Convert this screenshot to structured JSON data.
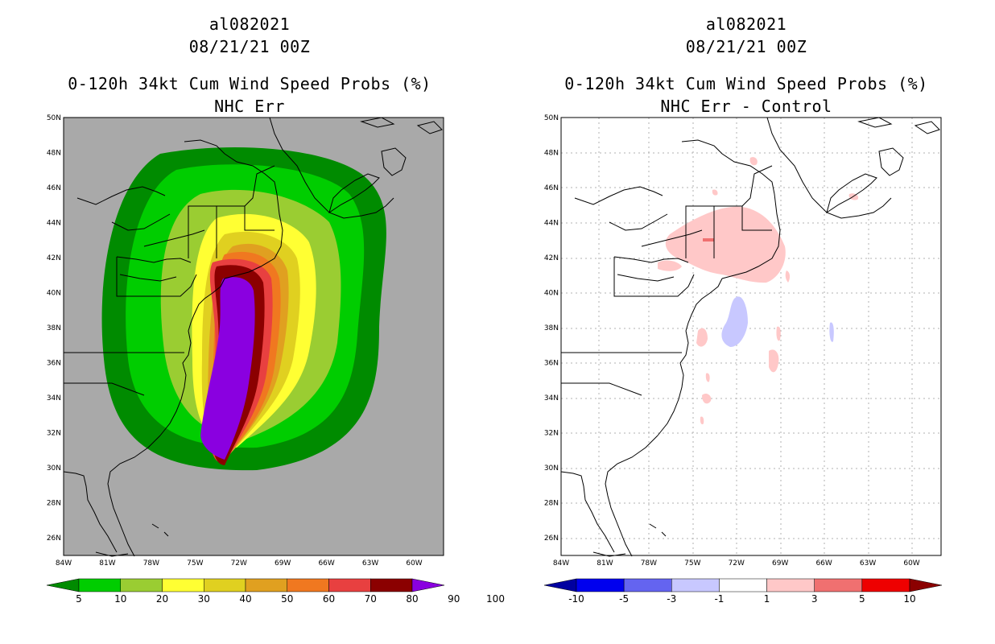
{
  "left_panel": {
    "storm_id": "al082021",
    "datetime": "08/21/21 00Z",
    "product": "0-120h 34kt Cum Wind Speed Probs (%)",
    "subtitle": "NHC Err",
    "background_color": "#a9a9a9",
    "colorbar": {
      "colors": [
        "#008b00",
        "#00cd00",
        "#9acd32",
        "#ffff33",
        "#e0d020",
        "#e0a020",
        "#f07820",
        "#e84040",
        "#8b0000",
        "#8a00e0"
      ],
      "labels": [
        "5",
        "10",
        "20",
        "30",
        "40",
        "50",
        "60",
        "70",
        "80",
        "90",
        "100"
      ]
    }
  },
  "right_panel": {
    "storm_id": "al082021",
    "datetime": "08/21/21 00Z",
    "product": "0-120h 34kt Cum Wind Speed Probs (%)",
    "subtitle": "NHC Err - Control",
    "background_color": "#ffffff",
    "colorbar": {
      "colors": [
        "#0000a0",
        "#0000ee",
        "#6464f0",
        "#c8c8ff",
        "#ffffff",
        "#ffc8c8",
        "#f07070",
        "#ee0000",
        "#8b0000"
      ],
      "labels": [
        "-10",
        "-5",
        "-3",
        "-1",
        "1",
        "3",
        "5",
        "10"
      ]
    }
  },
  "axes": {
    "lat_labels": [
      "50N",
      "48N",
      "46N",
      "44N",
      "42N",
      "40N",
      "38N",
      "36N",
      "34N",
      "32N",
      "30N",
      "28N",
      "26N"
    ],
    "lon_labels": [
      "84W",
      "81W",
      "78W",
      "75W",
      "72W",
      "69W",
      "66W",
      "63W",
      "60W"
    ],
    "lat_range": [
      25,
      50
    ],
    "lon_range": [
      -84,
      -58
    ]
  }
}
